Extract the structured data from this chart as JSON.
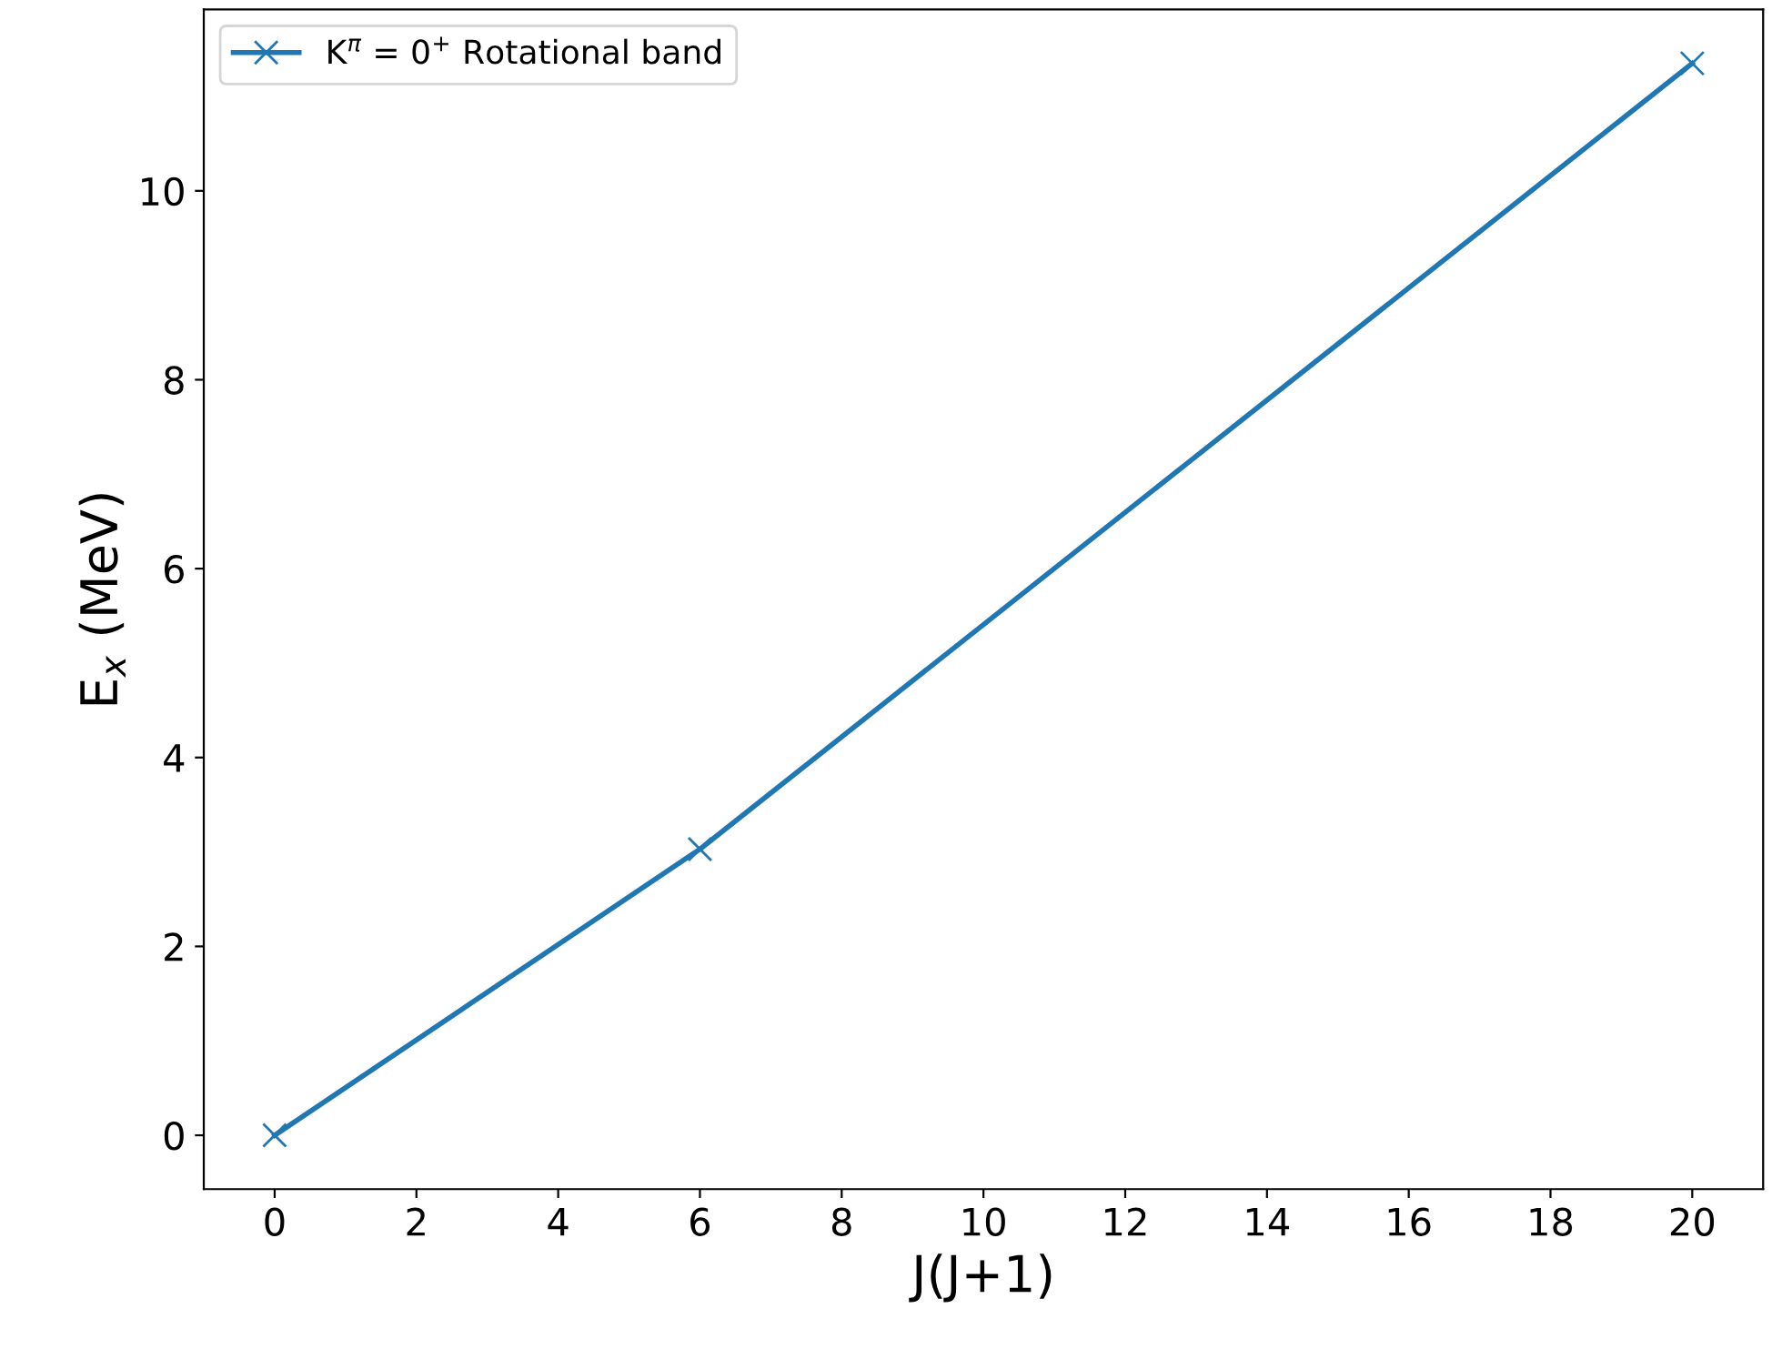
{
  "chart_data": {
    "type": "line",
    "xlabel": "J(J+1)",
    "ylabel": "E$_{x}$ (MeV)",
    "x": [
      0,
      6,
      20
    ],
    "series": [
      {
        "name": "K$^{π}$ = 0$^{+}$ Rotational band",
        "color": "#1f77b4",
        "values": [
          0,
          3.03,
          11.35
        ]
      }
    ],
    "xlim": [
      -1,
      21
    ],
    "ylim": [
      -0.57,
      11.92
    ],
    "xticks": [
      0,
      2,
      4,
      6,
      8,
      10,
      12,
      14,
      16,
      18,
      20
    ],
    "yticks": [
      0,
      2,
      4,
      6,
      8,
      10
    ],
    "marker": "cross",
    "line_style": "solid",
    "legend": "top left",
    "grid": false
  }
}
